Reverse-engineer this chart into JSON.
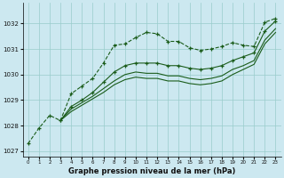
{
  "title": "Graphe pression niveau de la mer (hPa)",
  "bg_color": "#cce8f0",
  "grid_color": "#99cccc",
  "line_color": "#1a5c1a",
  "xlim": [
    -0.5,
    23.5
  ],
  "ylim": [
    1026.8,
    1032.8
  ],
  "yticks": [
    1027,
    1028,
    1029,
    1030,
    1031,
    1032
  ],
  "xticks": [
    0,
    1,
    2,
    3,
    4,
    5,
    6,
    7,
    8,
    9,
    10,
    11,
    12,
    13,
    14,
    15,
    16,
    17,
    18,
    19,
    20,
    21,
    22,
    23
  ],
  "series": [
    {
      "x": [
        0,
        1,
        2,
        3,
        4,
        5,
        6,
        7,
        8,
        9,
        10,
        11,
        12,
        13,
        14,
        15,
        16,
        17,
        18,
        19,
        20,
        21,
        22,
        23
      ],
      "y": [
        1027.3,
        1027.9,
        1028.4,
        1028.2,
        1029.25,
        1029.55,
        1029.85,
        1030.45,
        1031.15,
        1031.2,
        1031.45,
        1031.65,
        1031.6,
        1031.3,
        1031.3,
        1031.05,
        1030.95,
        1031.0,
        1031.1,
        1031.25,
        1031.15,
        1031.1,
        1032.05,
        1032.2
      ],
      "style": "--",
      "marker": "+",
      "ms": 3.5,
      "lw": 0.8
    },
    {
      "x": [
        3,
        4,
        5,
        6,
        7,
        8,
        9,
        10,
        11,
        12,
        13,
        14,
        15,
        16,
        17,
        18,
        19,
        20,
        21,
        22,
        23
      ],
      "y": [
        1028.2,
        1028.75,
        1029.0,
        1029.3,
        1029.7,
        1030.1,
        1030.35,
        1030.45,
        1030.45,
        1030.45,
        1030.35,
        1030.35,
        1030.25,
        1030.2,
        1030.25,
        1030.35,
        1030.55,
        1030.7,
        1030.85,
        1031.7,
        1032.1
      ],
      "style": "-",
      "marker": "+",
      "ms": 3.5,
      "lw": 0.8
    },
    {
      "x": [
        3,
        4,
        5,
        6,
        7,
        8,
        9,
        10,
        11,
        12,
        13,
        14,
        15,
        16,
        17,
        18,
        19,
        20,
        21,
        22,
        23
      ],
      "y": [
        1028.2,
        1028.65,
        1028.9,
        1029.15,
        1029.45,
        1029.75,
        1030.0,
        1030.1,
        1030.05,
        1030.05,
        1029.95,
        1029.95,
        1029.85,
        1029.8,
        1029.85,
        1029.95,
        1030.2,
        1030.35,
        1030.55,
        1031.35,
        1031.8
      ],
      "style": "-",
      "marker": null,
      "ms": 0,
      "lw": 0.8
    },
    {
      "x": [
        3,
        4,
        5,
        6,
        7,
        8,
        9,
        10,
        11,
        12,
        13,
        14,
        15,
        16,
        17,
        18,
        19,
        20,
        21,
        22,
        23
      ],
      "y": [
        1028.2,
        1028.55,
        1028.8,
        1029.05,
        1029.3,
        1029.6,
        1029.8,
        1029.9,
        1029.85,
        1029.85,
        1029.75,
        1029.75,
        1029.65,
        1029.6,
        1029.65,
        1029.75,
        1030.0,
        1030.2,
        1030.4,
        1031.2,
        1031.65
      ],
      "style": "-",
      "marker": null,
      "ms": 0,
      "lw": 0.8
    }
  ]
}
